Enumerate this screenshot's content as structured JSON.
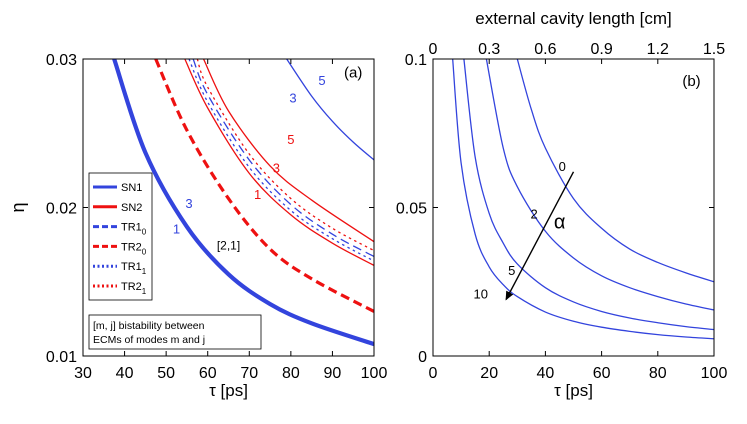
{
  "chart_data": [
    {
      "panel": "(a)",
      "type": "line",
      "xlabel": "τ [ps]",
      "ylabel": "η",
      "xlim": [
        30,
        100
      ],
      "ylim": [
        0.01,
        0.03
      ],
      "x_ticks": [
        30,
        40,
        50,
        60,
        70,
        80,
        90,
        100
      ],
      "y_ticks": [
        0.01,
        0.02,
        0.03
      ],
      "y_tick_labels": [
        "0.01",
        "0.02",
        "0.03"
      ],
      "colors": {
        "blue": "#3344dd",
        "red": "#ee1111"
      },
      "legend": [
        {
          "label": "SN1",
          "sub": "",
          "color": "blue",
          "dash": "solid",
          "thick": true
        },
        {
          "label": "SN2",
          "sub": "",
          "color": "red",
          "dash": "solid",
          "thick": true
        },
        {
          "label": "TR1",
          "sub": "0",
          "color": "blue",
          "dash": "dash",
          "thick": true
        },
        {
          "label": "TR2",
          "sub": "0",
          "color": "red",
          "dash": "dash",
          "thick": true
        },
        {
          "label": "TR1",
          "sub": "1",
          "color": "blue",
          "dash": "dot",
          "thick": true
        },
        {
          "label": "TR2",
          "sub": "1",
          "color": "red",
          "dash": "dot",
          "thick": true
        }
      ],
      "note_lines": [
        "[m, j]  bistability between",
        "ECMs of modes m and j"
      ],
      "series": [
        {
          "name": "SN1 [2,1]",
          "color": "blue",
          "dash": "solid",
          "width": 4.2,
          "x": [
            37.5,
            45,
            55,
            65,
            75,
            85,
            100
          ],
          "y": [
            0.03,
            0.0237,
            0.0187,
            0.0155,
            0.0135,
            0.0122,
            0.0108
          ]
        },
        {
          "name": "TR2_0",
          "color": "red",
          "dash": "dash",
          "width": 3.2,
          "x": [
            47.5,
            55,
            65,
            75,
            85,
            100
          ],
          "y": [
            0.03,
            0.0252,
            0.0206,
            0.0172,
            0.0152,
            0.013
          ]
        },
        {
          "name": "SN2 inner",
          "color": "red",
          "dash": "solid",
          "width": 1.3,
          "x": [
            54.5,
            60,
            70,
            80,
            90,
            100
          ],
          "y": [
            0.03,
            0.0267,
            0.0223,
            0.0195,
            0.0176,
            0.0161
          ]
        },
        {
          "name": "TR1_1",
          "color": "blue",
          "dash": "dot",
          "width": 1.3,
          "x": [
            55.5,
            60,
            70,
            80,
            90,
            100
          ],
          "y": [
            0.03,
            0.0271,
            0.0227,
            0.0198,
            0.0179,
            0.0164
          ]
        },
        {
          "name": "TR1_0",
          "color": "blue",
          "dash": "dash",
          "width": 1.3,
          "x": [
            56.5,
            60,
            70,
            80,
            90,
            100
          ],
          "y": [
            0.03,
            0.0276,
            0.0232,
            0.0202,
            0.0182,
            0.0167
          ]
        },
        {
          "name": "TR2_1",
          "color": "red",
          "dash": "dot",
          "width": 1.3,
          "x": [
            57.5,
            60,
            70,
            80,
            90,
            100
          ],
          "y": [
            0.03,
            0.0281,
            0.0236,
            0.0206,
            0.0186,
            0.0171
          ]
        },
        {
          "name": "SN2 outer",
          "color": "red",
          "dash": "solid",
          "width": 1.3,
          "x": [
            59,
            65,
            75,
            85,
            100
          ],
          "y": [
            0.03,
            0.0265,
            0.0228,
            0.0205,
            0.0177
          ]
        },
        {
          "name": "SN1 upper",
          "color": "blue",
          "dash": "solid",
          "width": 1.3,
          "x": [
            79,
            85,
            90,
            95,
            100
          ],
          "y": [
            0.03,
            0.0275,
            0.0258,
            0.0244,
            0.0232
          ]
        }
      ],
      "annotations": [
        {
          "text": "(a)",
          "x": 95,
          "y": 0.0291,
          "color": "black",
          "size": 15
        },
        {
          "text": "5",
          "x": 87.5,
          "y": 0.0286,
          "color": "blue",
          "size": 13
        },
        {
          "text": "3",
          "x": 80.5,
          "y": 0.0274,
          "color": "blue",
          "size": 13
        },
        {
          "text": "5",
          "x": 80,
          "y": 0.0246,
          "color": "red",
          "size": 13
        },
        {
          "text": "3",
          "x": 76.5,
          "y": 0.0227,
          "color": "red",
          "size": 13
        },
        {
          "text": "1",
          "x": 72,
          "y": 0.0209,
          "color": "red",
          "size": 13
        },
        {
          "text": "3",
          "x": 55.5,
          "y": 0.0203,
          "color": "blue",
          "size": 13
        },
        {
          "text": "1",
          "x": 52.5,
          "y": 0.0186,
          "color": "blue",
          "size": 13
        },
        {
          "text": "[2,1]",
          "x": 65,
          "y": 0.0175,
          "color": "black",
          "size": 12
        }
      ]
    },
    {
      "panel": "(b)",
      "type": "line",
      "xlabel": "τ [ps]",
      "ylabel": "",
      "top_xlabel": "external cavity length [cm]",
      "xlim": [
        0,
        100
      ],
      "ylim": [
        0,
        0.1
      ],
      "x_ticks": [
        0,
        20,
        40,
        60,
        80,
        100
      ],
      "y_ticks": [
        0,
        0.05,
        0.1
      ],
      "y_tick_labels": [
        "0",
        "0.05",
        "0.1"
      ],
      "top_ticks": [
        0,
        0.3,
        0.6,
        0.9,
        1.2,
        1.5
      ],
      "top_tick_labels": [
        "0",
        "0.3",
        "0.6",
        "0.9",
        "1.2",
        "1.5"
      ],
      "colors": {
        "blue": "#3344dd"
      },
      "series": [
        {
          "name": "α=0",
          "x": [
            30,
            35,
            40,
            50,
            60,
            70,
            80,
            90,
            100
          ],
          "y": [
            0.1,
            0.083,
            0.07,
            0.053,
            0.043,
            0.036,
            0.0315,
            0.028,
            0.025
          ]
        },
        {
          "name": "α=2",
          "x": [
            19,
            25,
            30,
            40,
            50,
            60,
            70,
            80,
            90,
            100
          ],
          "y": [
            0.1,
            0.07,
            0.057,
            0.042,
            0.033,
            0.027,
            0.023,
            0.02,
            0.0175,
            0.0155
          ]
        },
        {
          "name": "α=5",
          "x": [
            11,
            15,
            20,
            25,
            30,
            40,
            50,
            60,
            70,
            80,
            90,
            100
          ],
          "y": [
            0.1,
            0.067,
            0.048,
            0.038,
            0.031,
            0.023,
            0.0182,
            0.015,
            0.0128,
            0.0112,
            0.0099,
            0.0089
          ]
        },
        {
          "name": "α=10",
          "x": [
            7,
            10,
            15,
            20,
            25,
            30,
            40,
            50,
            60,
            70,
            80,
            90,
            100
          ],
          "y": [
            0.1,
            0.065,
            0.041,
            0.03,
            0.024,
            0.02,
            0.0148,
            0.0117,
            0.0097,
            0.0083,
            0.0072,
            0.0064,
            0.0058
          ]
        }
      ],
      "curve_labels": [
        {
          "text": "0",
          "x": 46,
          "y": 0.064
        },
        {
          "text": "2",
          "x": 36,
          "y": 0.048
        },
        {
          "text": "5",
          "x": 28,
          "y": 0.029
        },
        {
          "text": "10",
          "x": 17,
          "y": 0.021
        }
      ],
      "arrow": {
        "from": [
          50,
          0.062
        ],
        "to": [
          26,
          0.019
        ],
        "label": "α",
        "label_x": 43,
        "label_y": 0.045
      },
      "panel_label": {
        "text": "(b)",
        "x": 92,
        "y": 0.093
      }
    }
  ]
}
